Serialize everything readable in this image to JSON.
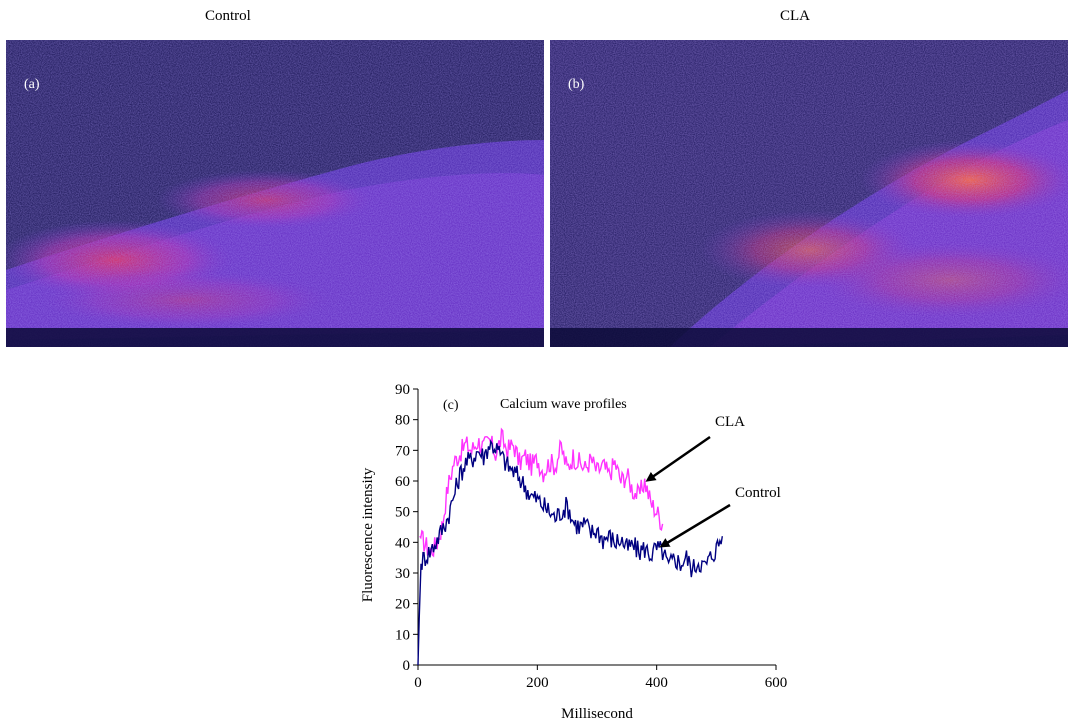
{
  "panels": [
    {
      "title": "Control",
      "letter": "(a)"
    },
    {
      "title": "CLA",
      "letter": "(b)"
    }
  ],
  "chart_data": {
    "type": "line",
    "panel_letter": "(c)",
    "title": "Calcium wave profiles",
    "xlabel": "Millisecond",
    "ylabel": "Fluorescence intensity",
    "xlim": [
      0,
      600
    ],
    "ylim": [
      0,
      90
    ],
    "xticks": [
      0,
      200,
      400,
      600
    ],
    "yticks": [
      0,
      10,
      20,
      30,
      40,
      50,
      60,
      70,
      80,
      90
    ],
    "grid": false,
    "legend": "none",
    "series": [
      {
        "name": "CLA",
        "color": "#ff33ff",
        "x": [
          3,
          10,
          20,
          30,
          40,
          50,
          60,
          70,
          80,
          90,
          100,
          110,
          120,
          130,
          140,
          150,
          160,
          170,
          180,
          190,
          200,
          210,
          220,
          230,
          240,
          250,
          260,
          270,
          280,
          290,
          300,
          310,
          320,
          330,
          340,
          350,
          360,
          370,
          380,
          390,
          400,
          410
        ],
        "y": [
          42,
          40,
          37,
          39,
          45,
          58,
          66,
          69,
          72,
          70,
          73,
          71,
          73,
          69,
          74,
          70,
          72,
          66,
          68,
          65,
          67,
          63,
          66,
          65,
          71,
          64,
          68,
          66,
          64,
          67,
          63,
          65,
          62,
          66,
          60,
          62,
          57,
          55,
          60,
          53,
          50,
          46
        ]
      },
      {
        "name": "Control",
        "color": "#000080",
        "x": [
          0,
          2,
          5,
          10,
          20,
          30,
          40,
          50,
          60,
          70,
          80,
          90,
          100,
          110,
          120,
          130,
          140,
          150,
          160,
          170,
          180,
          190,
          200,
          210,
          220,
          230,
          240,
          250,
          260,
          270,
          280,
          290,
          300,
          310,
          320,
          330,
          340,
          350,
          360,
          370,
          380,
          390,
          400,
          410,
          420,
          430,
          440,
          450,
          460,
          470,
          480,
          490,
          500,
          510
        ],
        "y": [
          0,
          15,
          33,
          35,
          37,
          40,
          44,
          48,
          55,
          62,
          66,
          67,
          70,
          68,
          72,
          71,
          68,
          65,
          63,
          61,
          58,
          55,
          54,
          52,
          50,
          48,
          50,
          52,
          47,
          45,
          46,
          43,
          44,
          41,
          42,
          40,
          41,
          38,
          39,
          37,
          38,
          36,
          38,
          37,
          32,
          35,
          33,
          35,
          31,
          34,
          32,
          35,
          38,
          42
        ]
      }
    ],
    "annotations": [
      {
        "text": "CLA",
        "points_to": "CLA"
      },
      {
        "text": "Control",
        "points_to": "Control"
      }
    ]
  }
}
